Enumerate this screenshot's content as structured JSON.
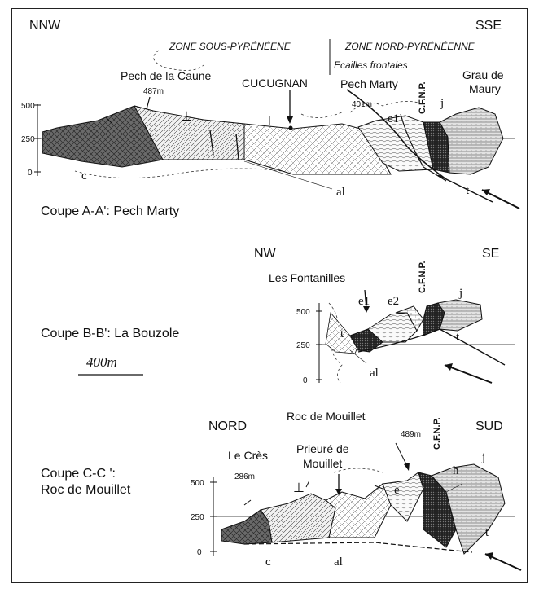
{
  "section_aa": {
    "dir_left": "NNW",
    "dir_right": "SSE",
    "zone_left": "ZONE SOUS-PYRÉNÉENE",
    "zone_right": "ZONE NORD-PYRÉNÉENNE",
    "ecailles": "Ecailles frontales",
    "peak1_name": "Pech de la Caune",
    "peak1_alt": "487m",
    "village": "CUCUGNAN",
    "peak2_name": "Pech Marty",
    "peak2_alt": "401m",
    "cfnp": "C.F.N.P.",
    "grau_line1": "Grau de",
    "grau_line2": "Maury",
    "unit_e1": "e1",
    "unit_j": "j",
    "unit_c": "c",
    "unit_al": "al",
    "unit_t": "t",
    "axis_ticks": [
      "500",
      "250",
      "0"
    ],
    "caption": "Coupe A-A': Pech Marty"
  },
  "section_bb": {
    "dir_left": "NW",
    "dir_right": "SE",
    "place": "Les Fontanilles",
    "cfnp": "C.F.N.P.",
    "unit_e1": "e1",
    "unit_e2": "e2",
    "unit_j": "j",
    "unit_t1": "t",
    "unit_t2": "t",
    "unit_al": "al",
    "axis_ticks": [
      "500",
      "250",
      "0"
    ],
    "caption": "Coupe B-B': La Bouzole",
    "scale": "400m"
  },
  "section_cc": {
    "dir_left": "NORD",
    "dir_right": "SUD",
    "peak_name": "Roc de Mouillet",
    "peak_alt": "489m",
    "cfnp": "C.F.N.P.",
    "cres_name": "Le Crès",
    "cres_alt": "286m",
    "prieure_line1": "Prieuré de",
    "prieure_line2": "Mouillet",
    "unit_e": "e",
    "unit_h": "h",
    "unit_j": "j",
    "unit_c": "c",
    "unit_al": "al",
    "unit_t": "t",
    "axis_ticks": [
      "500",
      "250",
      "0"
    ],
    "caption_line1": "Coupe C-C ':",
    "caption_line2": "Roc de Mouillet"
  },
  "colors": {
    "ink": "#111111",
    "dark_fill": "#555555",
    "medium_fill": "#9a9a9a",
    "light_fill": "#d8d8d8"
  }
}
